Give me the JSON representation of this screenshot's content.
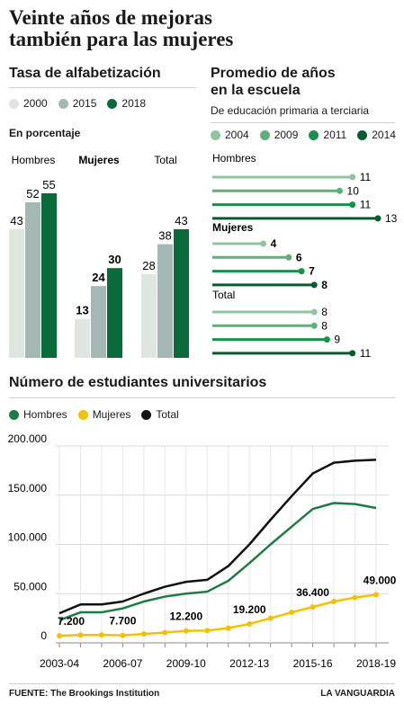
{
  "title_line1": "Veinte años de mejoras",
  "title_line2": "también para las mujeres",
  "colors": {
    "y2000": "#dfe6e2",
    "y2015": "#a5b7b3",
    "y2018": "#0a6b3a",
    "l2004": "#93c4a2",
    "l2009": "#5faf7c",
    "l2011": "#1c8e4d",
    "l2014": "#0a5a30",
    "hombres": "#1f7a45",
    "mujeres": "#f2c200",
    "total": "#111111"
  },
  "alfabetizacion": {
    "title": "Tasa de alfabetización",
    "unit_note": "En porcentaje",
    "legend": [
      "2000",
      "2015",
      "2018"
    ]
  },
  "escuela": {
    "title_line1": "Promedio de años",
    "title_line2": "en la escuela",
    "subtitle": "De educación primaria a terciaria",
    "legend": [
      "2004",
      "2009",
      "2011",
      "2014"
    ]
  },
  "universitarios": {
    "title": "Número de estudiantes universitarios",
    "legend": [
      "Hombres",
      "Mujeres",
      "Total"
    ]
  },
  "footer": {
    "source": "FUENTE: The Brookings Institution",
    "brand": "LA VANGUARDIA"
  },
  "chart_data": [
    {
      "type": "bar",
      "title": "Tasa de alfabetización",
      "categories": [
        "Hombres",
        "Mujeres",
        "Total"
      ],
      "series": [
        {
          "name": "2000",
          "values": [
            43,
            13,
            28
          ]
        },
        {
          "name": "2015",
          "values": [
            52,
            24,
            38
          ]
        },
        {
          "name": "2018",
          "values": [
            55,
            30,
            43
          ]
        }
      ],
      "ylim": [
        0,
        55
      ],
      "legend": "top-left"
    },
    {
      "type": "bar",
      "title": "Promedio de años en la escuela",
      "subtitle": "De educación primaria a terciaria",
      "categories": [
        "Hombres",
        "Mujeres",
        "Total"
      ],
      "series": [
        {
          "name": "2004",
          "values": [
            11,
            4,
            8
          ]
        },
        {
          "name": "2009",
          "values": [
            10,
            6,
            8
          ]
        },
        {
          "name": "2011",
          "values": [
            11,
            7,
            9
          ]
        },
        {
          "name": "2014",
          "values": [
            13,
            8,
            11
          ]
        }
      ],
      "xlim": [
        0,
        13
      ],
      "orientation": "horizontal",
      "legend": "top-left"
    },
    {
      "type": "line",
      "title": "Número de estudiantes universitarios",
      "x": [
        "2003-04",
        "2004-05",
        "2005-06",
        "2006-07",
        "2007-08",
        "2008-09",
        "2009-10",
        "2010-11",
        "2011-12",
        "2012-13",
        "2013-14",
        "2014-15",
        "2015-16",
        "2016-17",
        "2017-18",
        "2018-19"
      ],
      "xticks": [
        "2003-04",
        "2006-07",
        "2009-10",
        "2012-13",
        "2015-16",
        "2018-19"
      ],
      "series": [
        {
          "name": "Hombres",
          "values": [
            23000,
            31000,
            31000,
            35000,
            42000,
            47000,
            50000,
            52000,
            63000,
            81000,
            100000,
            118000,
            136000,
            142000,
            141000,
            137000
          ]
        },
        {
          "name": "Mujeres",
          "values": [
            7200,
            8000,
            8100,
            7700,
            9000,
            10500,
            12200,
            12500,
            15000,
            19200,
            25000,
            31000,
            36400,
            42000,
            46000,
            49000
          ]
        },
        {
          "name": "Total",
          "values": [
            30000,
            39000,
            39000,
            42000,
            50000,
            57000,
            62000,
            64000,
            78000,
            100000,
            125000,
            149000,
            172000,
            183000,
            185000,
            186000
          ]
        }
      ],
      "annotations": [
        {
          "x": "2003-04",
          "label": "7.200"
        },
        {
          "x": "2006-07",
          "label": "7.700"
        },
        {
          "x": "2009-10",
          "label": "12.200"
        },
        {
          "x": "2012-13",
          "label": "19.200"
        },
        {
          "x": "2015-16",
          "label": "36.400"
        },
        {
          "x": "2018-19",
          "label": "49.000"
        }
      ],
      "yticks": [
        "0",
        "50.000",
        "100.000",
        "150.000",
        "200.000"
      ],
      "ylim": [
        0,
        200000
      ],
      "grid": true,
      "legend": "top-left"
    }
  ]
}
